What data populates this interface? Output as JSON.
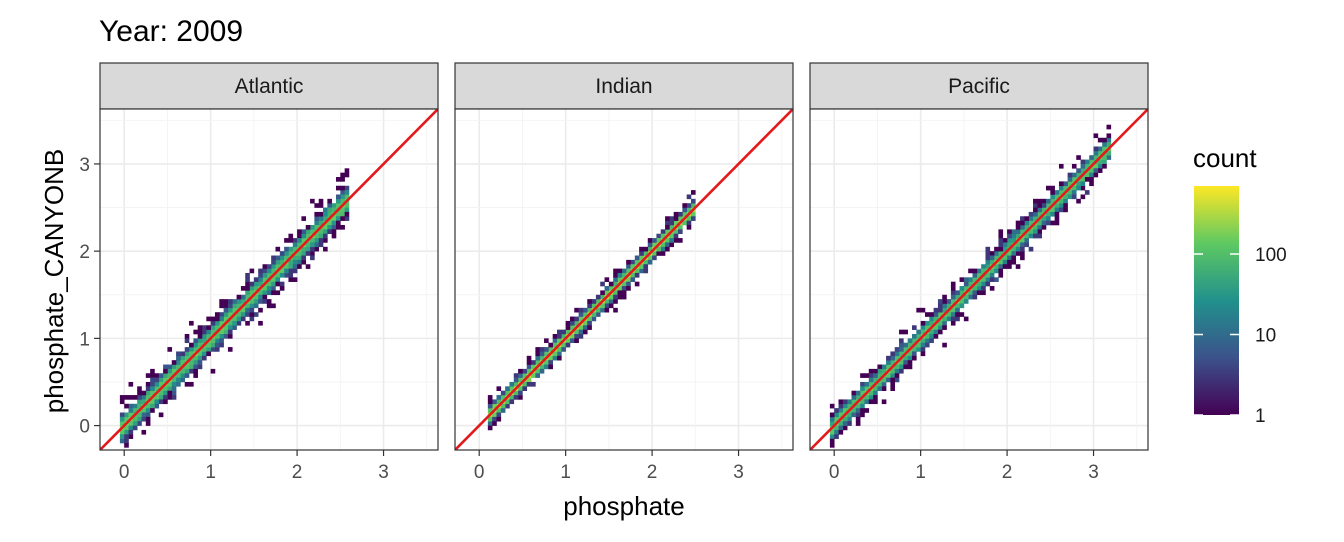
{
  "chart_data": {
    "type": "heatmap",
    "title": "Year: 2009",
    "xlabel": "phosphate",
    "ylabel": "phosphate_CANYONB",
    "xlim": [
      -0.28,
      3.63
    ],
    "ylim": [
      -0.28,
      3.63
    ],
    "x_ticks": [
      "0",
      "1",
      "2",
      "3"
    ],
    "y_ticks": [
      "0",
      "1",
      "2",
      "3"
    ],
    "grid": true,
    "identity_line": {
      "slope": 1,
      "intercept": 0,
      "color": "#e31a1c"
    },
    "legend": {
      "title": "count",
      "position": "right",
      "scale": "log10",
      "range": [
        1,
        700
      ],
      "ticks": [
        "1",
        "10",
        "100"
      ],
      "colors": [
        "#440154",
        "#3b528b",
        "#21918c",
        "#5ec962",
        "#fde725"
      ]
    },
    "panels": [
      {
        "label": "Atlantic",
        "x_range": [
          -0.05,
          2.6
        ],
        "spread": 0.18
      },
      {
        "label": "Indian",
        "x_range": [
          0.1,
          2.5
        ],
        "spread": 0.1
      },
      {
        "label": "Pacific",
        "x_range": [
          -0.05,
          3.2
        ],
        "spread": 0.15
      }
    ]
  }
}
